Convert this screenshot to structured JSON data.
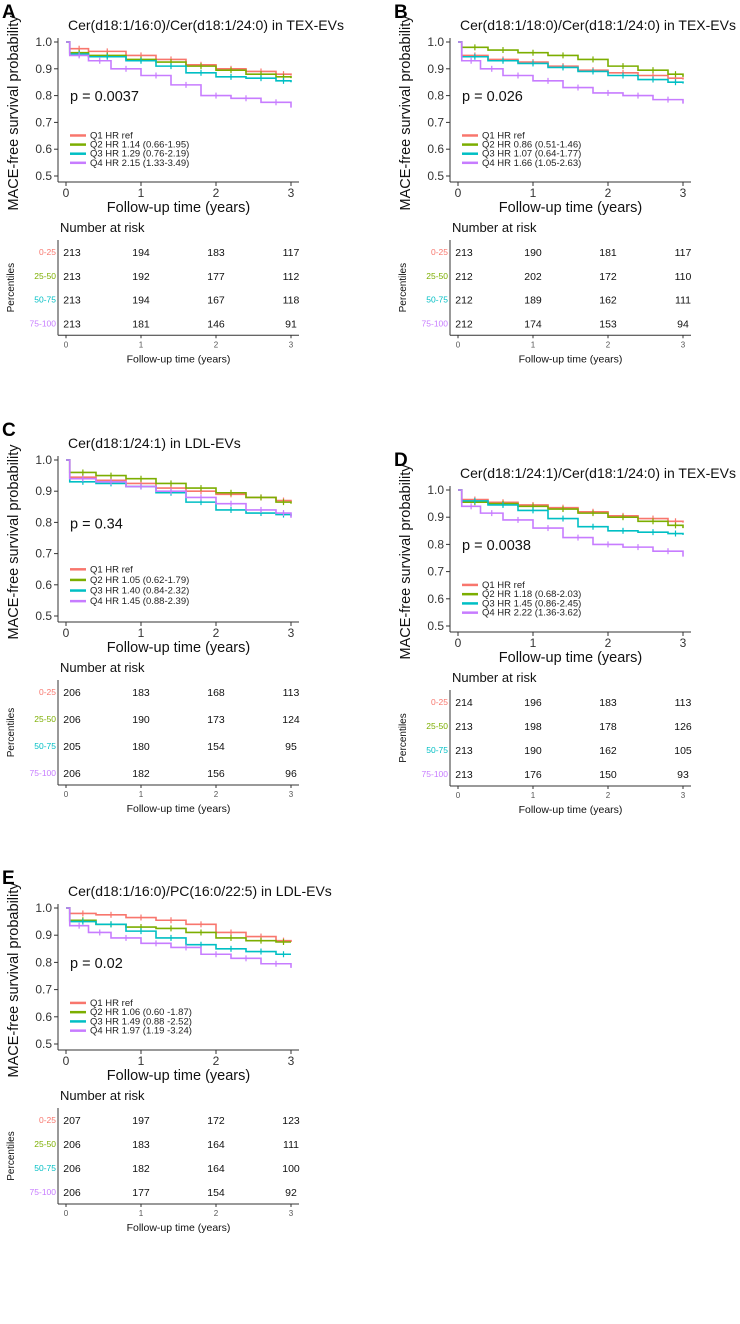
{
  "figure": {
    "y_label": "MACE-free survival probability",
    "x_label": "Follow-up time (years)",
    "risk_title": "Number at risk",
    "risk_y_label": "Percentiles",
    "risk_x_label": "Follow-up time (years)",
    "strata": [
      "0-25",
      "25-50",
      "50-75",
      "75-100"
    ],
    "legend_groups": [
      "Q1",
      "Q2",
      "Q3",
      "Q4"
    ],
    "hr_prefix": "HR",
    "colors": [
      "#f8766d",
      "#7cae00",
      "#00bfc4",
      "#c77cff"
    ]
  },
  "chart_data": [
    {
      "type": "line",
      "letter": "A",
      "title": "Cer(d18:1/16:0)/Cer(d18:1/24:0) in TEX-EVs",
      "p_value": "p = 0.0037",
      "xlim": [
        0,
        3
      ],
      "ylim": [
        0.5,
        1.0
      ],
      "x_ticks": [
        "0",
        "1",
        "2",
        "3"
      ],
      "y_ticks": [
        "0.5",
        "0.6",
        "0.7",
        "0.8",
        "0.9",
        "1.0"
      ],
      "legend_hr": [
        "ref",
        "1.14 (0.66-1.95)",
        "1.29 (0.76-2.19)",
        "2.15 (1.33-3.49)"
      ],
      "series": [
        {
          "name": "Q1",
          "x": [
            0,
            0.05,
            0.3,
            0.8,
            1.2,
            1.6,
            2.0,
            2.4,
            2.8,
            3.0
          ],
          "y": [
            1.0,
            0.975,
            0.965,
            0.95,
            0.935,
            0.915,
            0.9,
            0.89,
            0.88,
            0.875
          ]
        },
        {
          "name": "Q2",
          "x": [
            0,
            0.05,
            0.3,
            0.8,
            1.2,
            1.6,
            2.0,
            2.4,
            2.8,
            3.0
          ],
          "y": [
            1.0,
            0.96,
            0.95,
            0.935,
            0.925,
            0.91,
            0.895,
            0.88,
            0.87,
            0.865
          ]
        },
        {
          "name": "Q3",
          "x": [
            0,
            0.05,
            0.3,
            0.8,
            1.2,
            1.6,
            2.0,
            2.4,
            2.8,
            3.0
          ],
          "y": [
            1.0,
            0.955,
            0.945,
            0.93,
            0.91,
            0.885,
            0.87,
            0.865,
            0.855,
            0.85
          ]
        },
        {
          "name": "Q4",
          "x": [
            0,
            0.05,
            0.3,
            0.6,
            1.0,
            1.4,
            1.8,
            2.2,
            2.6,
            3.0
          ],
          "y": [
            1.0,
            0.95,
            0.93,
            0.9,
            0.875,
            0.84,
            0.8,
            0.79,
            0.775,
            0.755
          ]
        }
      ],
      "risk_table": [
        [
          213,
          194,
          183,
          117
        ],
        [
          213,
          192,
          177,
          112
        ],
        [
          213,
          194,
          167,
          118
        ],
        [
          213,
          181,
          146,
          91
        ]
      ]
    },
    {
      "type": "line",
      "letter": "B",
      "title": "Cer(d18:1/18:0)/Cer(d18:1/24:0) in TEX-EVs",
      "p_value": "p = 0.026",
      "xlim": [
        0,
        3
      ],
      "ylim": [
        0.5,
        1.0
      ],
      "x_ticks": [
        "0",
        "1",
        "2",
        "3"
      ],
      "y_ticks": [
        "0.5",
        "0.6",
        "0.7",
        "0.8",
        "0.9",
        "1.0"
      ],
      "legend_hr": [
        "ref",
        "0.86 (0.51-1.46)",
        "1.07 (0.64-1.77)",
        "1.66 (1.05-2.63)"
      ],
      "series": [
        {
          "name": "Q1",
          "x": [
            0,
            0.05,
            0.4,
            0.8,
            1.2,
            1.6,
            2.0,
            2.4,
            2.8,
            3.0
          ],
          "y": [
            1.0,
            0.95,
            0.935,
            0.925,
            0.91,
            0.895,
            0.885,
            0.875,
            0.865,
            0.86
          ]
        },
        {
          "name": "Q2",
          "x": [
            0,
            0.05,
            0.4,
            0.8,
            1.2,
            1.6,
            2.0,
            2.4,
            2.8,
            3.0
          ],
          "y": [
            1.0,
            0.98,
            0.97,
            0.96,
            0.95,
            0.935,
            0.91,
            0.895,
            0.88,
            0.87
          ]
        },
        {
          "name": "Q3",
          "x": [
            0,
            0.05,
            0.4,
            0.8,
            1.2,
            1.6,
            2.0,
            2.4,
            2.8,
            3.0
          ],
          "y": [
            1.0,
            0.945,
            0.93,
            0.92,
            0.905,
            0.89,
            0.875,
            0.86,
            0.85,
            0.845
          ]
        },
        {
          "name": "Q4",
          "x": [
            0,
            0.05,
            0.3,
            0.6,
            1.0,
            1.4,
            1.8,
            2.2,
            2.6,
            3.0
          ],
          "y": [
            1.0,
            0.93,
            0.9,
            0.875,
            0.855,
            0.83,
            0.81,
            0.8,
            0.785,
            0.77
          ]
        }
      ],
      "risk_table": [
        [
          213,
          190,
          181,
          117
        ],
        [
          212,
          202,
          172,
          110
        ],
        [
          212,
          189,
          162,
          111
        ],
        [
          212,
          174,
          153,
          94
        ]
      ]
    },
    {
      "type": "line",
      "letter": "C",
      "title": "Cer(d18:1/24:1) in LDL-EVs",
      "p_value": "p = 0.34",
      "xlim": [
        0,
        3
      ],
      "ylim": [
        0.5,
        1.0
      ],
      "x_ticks": [
        "0",
        "1",
        "2",
        "3"
      ],
      "y_ticks": [
        "0.5",
        "0.6",
        "0.7",
        "0.8",
        "0.9",
        "1.0"
      ],
      "legend_hr": [
        "ref",
        "1.05 (0.62-1.79)",
        "1.40 (0.84-2.32)",
        "1.45 (0.88-2.39)"
      ],
      "series": [
        {
          "name": "Q1",
          "x": [
            0,
            0.05,
            0.4,
            0.8,
            1.2,
            1.6,
            2.0,
            2.4,
            2.8,
            3.0
          ],
          "y": [
            1.0,
            0.945,
            0.935,
            0.925,
            0.91,
            0.9,
            0.89,
            0.88,
            0.87,
            0.865
          ]
        },
        {
          "name": "Q2",
          "x": [
            0,
            0.05,
            0.4,
            0.8,
            1.2,
            1.6,
            2.0,
            2.4,
            2.8,
            3.0
          ],
          "y": [
            1.0,
            0.96,
            0.95,
            0.94,
            0.925,
            0.91,
            0.895,
            0.88,
            0.865,
            0.86
          ]
        },
        {
          "name": "Q3",
          "x": [
            0,
            0.05,
            0.4,
            0.8,
            1.2,
            1.6,
            2.0,
            2.4,
            2.8,
            3.0
          ],
          "y": [
            1.0,
            0.93,
            0.925,
            0.915,
            0.895,
            0.865,
            0.84,
            0.83,
            0.825,
            0.82
          ]
        },
        {
          "name": "Q4",
          "x": [
            0,
            0.05,
            0.4,
            0.8,
            1.2,
            1.6,
            2.0,
            2.4,
            2.8,
            3.0
          ],
          "y": [
            1.0,
            0.94,
            0.93,
            0.915,
            0.9,
            0.88,
            0.86,
            0.84,
            0.83,
            0.815
          ]
        }
      ],
      "risk_table": [
        [
          206,
          183,
          168,
          113
        ],
        [
          206,
          190,
          173,
          124
        ],
        [
          205,
          180,
          154,
          95
        ],
        [
          206,
          182,
          156,
          96
        ]
      ]
    },
    {
      "type": "line",
      "letter": "D",
      "title": "Cer(d18:1/24:1)/Cer(d18:1/24:0) in TEX-EVs",
      "p_value": "p = 0.0038",
      "xlim": [
        0,
        3
      ],
      "ylim": [
        0.5,
        1.0
      ],
      "x_ticks": [
        "0",
        "1",
        "2",
        "3"
      ],
      "y_ticks": [
        "0.5",
        "0.6",
        "0.7",
        "0.8",
        "0.9",
        "1.0"
      ],
      "legend_hr": [
        "ref",
        "1.18 (0.68-2.03)",
        "1.45 (0.86-2.45)",
        "2.22 (1.36-3.62)"
      ],
      "series": [
        {
          "name": "Q1",
          "x": [
            0,
            0.05,
            0.4,
            0.8,
            1.2,
            1.6,
            2.0,
            2.4,
            2.8,
            3.0
          ],
          "y": [
            1.0,
            0.965,
            0.955,
            0.945,
            0.935,
            0.92,
            0.905,
            0.895,
            0.885,
            0.88
          ]
        },
        {
          "name": "Q2",
          "x": [
            0,
            0.05,
            0.4,
            0.8,
            1.2,
            1.6,
            2.0,
            2.4,
            2.8,
            3.0
          ],
          "y": [
            1.0,
            0.955,
            0.95,
            0.94,
            0.93,
            0.915,
            0.9,
            0.885,
            0.87,
            0.86
          ]
        },
        {
          "name": "Q3",
          "x": [
            0,
            0.05,
            0.4,
            0.8,
            1.2,
            1.6,
            2.0,
            2.4,
            2.8,
            3.0
          ],
          "y": [
            1.0,
            0.96,
            0.945,
            0.925,
            0.895,
            0.865,
            0.85,
            0.845,
            0.84,
            0.835
          ]
        },
        {
          "name": "Q4",
          "x": [
            0,
            0.05,
            0.3,
            0.6,
            1.0,
            1.4,
            1.8,
            2.2,
            2.6,
            3.0
          ],
          "y": [
            1.0,
            0.94,
            0.915,
            0.89,
            0.86,
            0.825,
            0.8,
            0.79,
            0.775,
            0.755
          ]
        }
      ],
      "risk_table": [
        [
          214,
          196,
          183,
          113
        ],
        [
          213,
          198,
          178,
          126
        ],
        [
          213,
          190,
          162,
          105
        ],
        [
          213,
          176,
          150,
          93
        ]
      ]
    },
    {
      "type": "line",
      "letter": "E",
      "title": "Cer(d18:1/16:0)/PC(16:0/22:5) in LDL-EVs",
      "p_value": "p = 0.02",
      "xlim": [
        0,
        3
      ],
      "ylim": [
        0.5,
        1.0
      ],
      "x_ticks": [
        "0",
        "1",
        "2",
        "3"
      ],
      "y_ticks": [
        "0.5",
        "0.6",
        "0.7",
        "0.8",
        "0.9",
        "1.0"
      ],
      "legend_hr": [
        "ref",
        "1.06 (0.60 -1.87)",
        "1.49 (0.88 -2.52)",
        "1.97 (1.19 -3.24)"
      ],
      "series": [
        {
          "name": "Q1",
          "x": [
            0,
            0.05,
            0.4,
            0.8,
            1.2,
            1.6,
            2.0,
            2.4,
            2.8,
            3.0
          ],
          "y": [
            1.0,
            0.98,
            0.975,
            0.965,
            0.955,
            0.94,
            0.91,
            0.895,
            0.88,
            0.875
          ]
        },
        {
          "name": "Q2",
          "x": [
            0,
            0.05,
            0.4,
            0.8,
            1.2,
            1.6,
            2.0,
            2.4,
            2.8,
            3.0
          ],
          "y": [
            1.0,
            0.955,
            0.94,
            0.93,
            0.925,
            0.91,
            0.89,
            0.88,
            0.875,
            0.875
          ]
        },
        {
          "name": "Q3",
          "x": [
            0,
            0.05,
            0.4,
            0.8,
            1.2,
            1.6,
            2.0,
            2.4,
            2.8,
            3.0
          ],
          "y": [
            1.0,
            0.95,
            0.94,
            0.915,
            0.89,
            0.865,
            0.85,
            0.84,
            0.83,
            0.83
          ]
        },
        {
          "name": "Q4",
          "x": [
            0,
            0.05,
            0.3,
            0.6,
            1.0,
            1.4,
            1.8,
            2.2,
            2.6,
            3.0
          ],
          "y": [
            1.0,
            0.935,
            0.91,
            0.89,
            0.87,
            0.855,
            0.83,
            0.815,
            0.795,
            0.78
          ]
        }
      ],
      "risk_table": [
        [
          207,
          197,
          172,
          123
        ],
        [
          206,
          183,
          164,
          111
        ],
        [
          206,
          182,
          164,
          100
        ],
        [
          206,
          177,
          154,
          92
        ]
      ]
    }
  ]
}
